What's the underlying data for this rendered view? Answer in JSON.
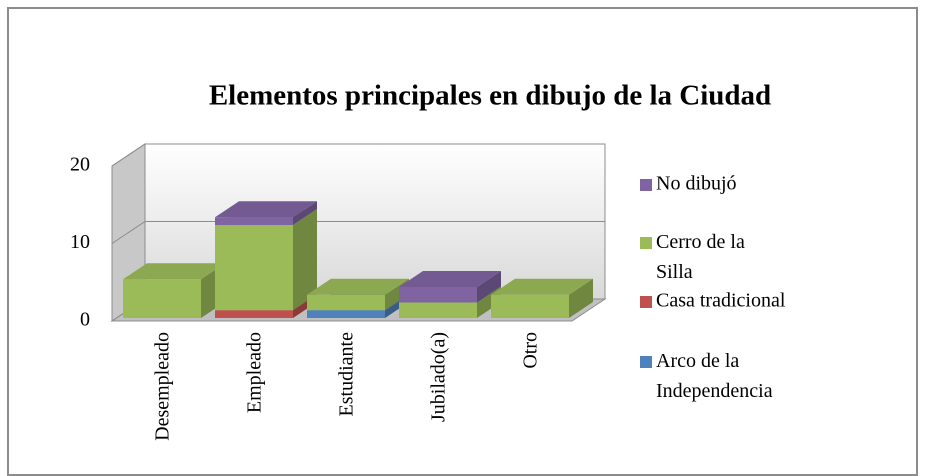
{
  "chart_data": {
    "type": "bar3d_stacked",
    "title": "Elementos principales en dibujo de la Ciudad",
    "categories": [
      "Desempleado",
      "Empleado",
      "Estudiante",
      "Jubilado(a)",
      "Otro"
    ],
    "series": [
      {
        "name": "Arco de la Independencia",
        "color": "#4f81bd",
        "values": [
          0,
          0,
          1,
          0,
          0
        ]
      },
      {
        "name": "Casa tradicional",
        "color": "#c0504d",
        "values": [
          0,
          1,
          0,
          0,
          0
        ]
      },
      {
        "name": "Cerro de la Silla",
        "color": "#9bbb59",
        "values": [
          5,
          11,
          2,
          2,
          3
        ]
      },
      {
        "name": "No dibujó",
        "color": "#8064a2",
        "values": [
          0,
          1,
          0,
          2,
          0
        ]
      }
    ],
    "ylim": [
      0,
      20
    ],
    "yticks": [
      0,
      10,
      20
    ],
    "grid": true,
    "legend": "right"
  }
}
